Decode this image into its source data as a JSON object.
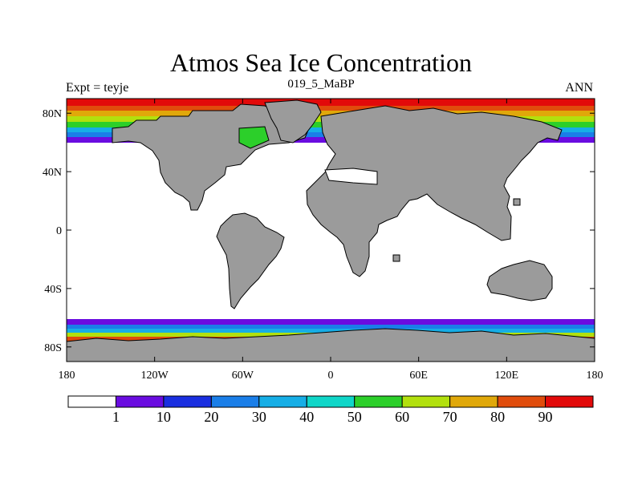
{
  "chart_data": {
    "type": "heatmap",
    "title": "Atmos Sea Ice Concentration",
    "subtitle": "019_5_MaBP",
    "left_label": "Expt = teyje",
    "right_label": "ANN",
    "x_axis": {
      "range": [
        -180,
        180
      ],
      "ticks": [
        {
          "value": -180,
          "label": "180"
        },
        {
          "value": -120,
          "label": "120W"
        },
        {
          "value": -60,
          "label": "60W"
        },
        {
          "value": 0,
          "label": "0"
        },
        {
          "value": 60,
          "label": "60E"
        },
        {
          "value": 120,
          "label": "120E"
        },
        {
          "value": 180,
          "label": "180"
        }
      ]
    },
    "y_axis": {
      "range": [
        -90,
        90
      ],
      "ticks": [
        {
          "value": 80,
          "label": "80N"
        },
        {
          "value": 40,
          "label": "40N"
        },
        {
          "value": 0,
          "label": "0"
        },
        {
          "value": -40,
          "label": "40S"
        },
        {
          "value": -80,
          "label": "80S"
        }
      ]
    },
    "colorbar": {
      "colors": [
        "#ffffff",
        "#6a0ce0",
        "#1a2fe0",
        "#1a7ee8",
        "#16aee6",
        "#0fd6c8",
        "#2ccf2a",
        "#b2e00e",
        "#e0a80a",
        "#e04c0c",
        "#e20a0a"
      ],
      "labels": [
        "1",
        "10",
        "20",
        "30",
        "40",
        "50",
        "60",
        "70",
        "80",
        "90"
      ]
    },
    "land_color": "#9b9b9b"
  }
}
